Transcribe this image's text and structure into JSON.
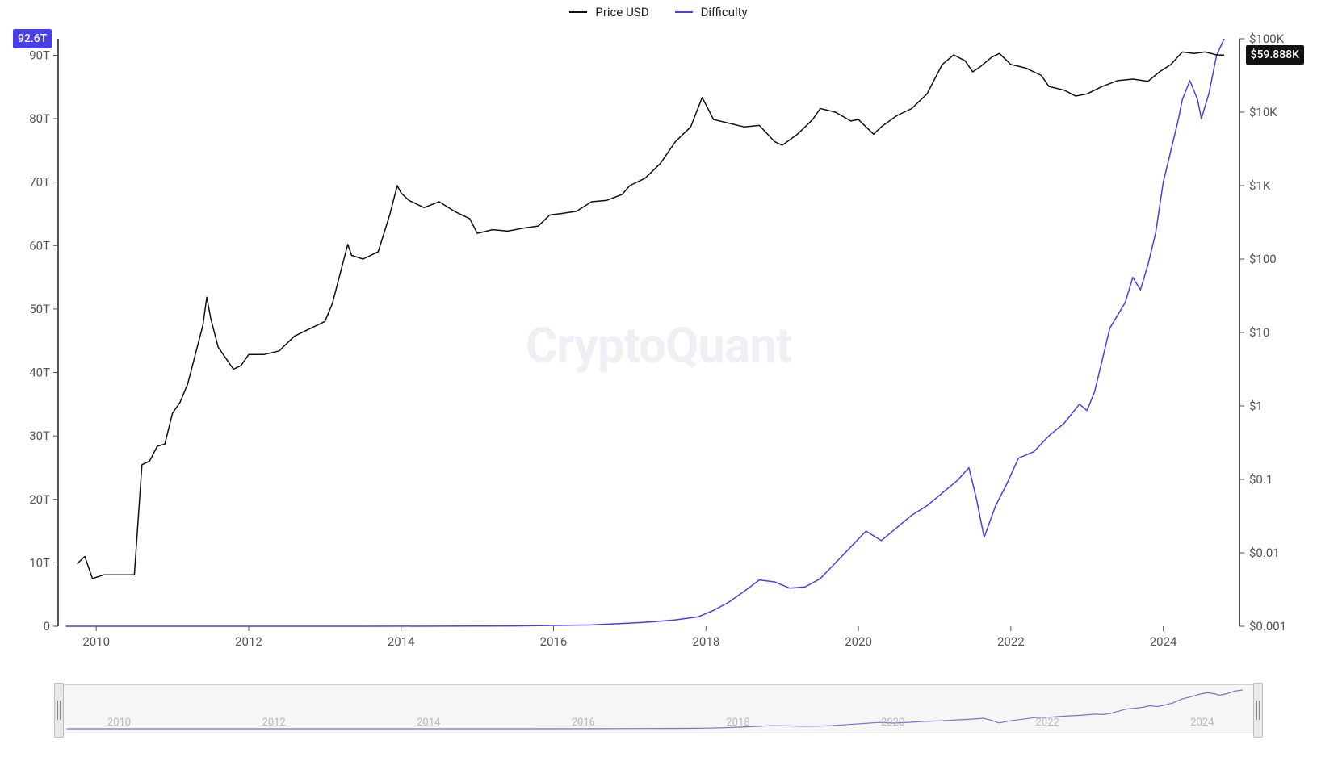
{
  "legend": {
    "items": [
      {
        "label": "Price USD",
        "color": "#111111"
      },
      {
        "label": "Difficulty",
        "color": "#4a3ee8"
      }
    ]
  },
  "watermark": "CryptoQuant",
  "left_badge": {
    "text": "92.6T",
    "bg": "#4a3ee8"
  },
  "right_badge": {
    "text": "$59.888K",
    "bg": "#111111"
  },
  "chart": {
    "type": "dual-axis-line",
    "background_color": "#ffffff",
    "axis_color": "#555555",
    "axis_width": 2,
    "line_width": 1.5,
    "font_size_ticks": 15,
    "x_axis": {
      "domain": [
        2009.5,
        2025.0
      ],
      "tick_labels": [
        "2010",
        "2012",
        "2014",
        "2016",
        "2018",
        "2020",
        "2022",
        "2024"
      ],
      "tick_values": [
        2010,
        2012,
        2014,
        2016,
        2018,
        2020,
        2022,
        2024
      ]
    },
    "left_y_axis": {
      "label_series": "Difficulty",
      "scale": "linear",
      "domain": [
        0,
        92.6
      ],
      "unit_suffix": "T",
      "tick_values": [
        0,
        10,
        20,
        30,
        40,
        50,
        60,
        70,
        80,
        90
      ],
      "tick_labels": [
        "0",
        "10T",
        "20T",
        "30T",
        "40T",
        "50T",
        "60T",
        "70T",
        "80T",
        "90T"
      ]
    },
    "right_y_axis": {
      "label_series": "Price USD",
      "scale": "log",
      "domain_log10": [
        -3,
        5
      ],
      "tick_values_log10": [
        -3,
        -2,
        -1,
        0,
        1,
        2,
        3,
        4,
        5
      ],
      "tick_labels": [
        "$0.001",
        "$0.01",
        "$0.1",
        "$1",
        "$10",
        "$100",
        "$1K",
        "$10K",
        "$100K"
      ]
    },
    "series": {
      "difficulty": {
        "color": "#4a3ee8",
        "axis": "left",
        "data": [
          [
            2009.6,
            0.0
          ],
          [
            2010.5,
            0.0
          ],
          [
            2011.5,
            0.0
          ],
          [
            2012.5,
            0.0
          ],
          [
            2013.5,
            0.0
          ],
          [
            2014.5,
            0.01
          ],
          [
            2015.5,
            0.05
          ],
          [
            2016.5,
            0.2
          ],
          [
            2017.0,
            0.5
          ],
          [
            2017.3,
            0.7
          ],
          [
            2017.6,
            1.0
          ],
          [
            2017.9,
            1.5
          ],
          [
            2018.1,
            2.5
          ],
          [
            2018.3,
            3.8
          ],
          [
            2018.5,
            5.5
          ],
          [
            2018.7,
            7.3
          ],
          [
            2018.9,
            7.0
          ],
          [
            2019.1,
            6.0
          ],
          [
            2019.3,
            6.2
          ],
          [
            2019.5,
            7.5
          ],
          [
            2019.7,
            10.0
          ],
          [
            2019.9,
            12.5
          ],
          [
            2020.1,
            15.0
          ],
          [
            2020.3,
            13.5
          ],
          [
            2020.5,
            15.5
          ],
          [
            2020.7,
            17.5
          ],
          [
            2020.9,
            19.0
          ],
          [
            2021.1,
            21.0
          ],
          [
            2021.3,
            23.0
          ],
          [
            2021.45,
            25.0
          ],
          [
            2021.55,
            20.0
          ],
          [
            2021.65,
            14.0
          ],
          [
            2021.8,
            19.0
          ],
          [
            2021.95,
            22.5
          ],
          [
            2022.1,
            26.5
          ],
          [
            2022.3,
            27.5
          ],
          [
            2022.5,
            30.0
          ],
          [
            2022.7,
            32.0
          ],
          [
            2022.9,
            35.0
          ],
          [
            2023.0,
            34.0
          ],
          [
            2023.1,
            37.0
          ],
          [
            2023.2,
            42.0
          ],
          [
            2023.3,
            47.0
          ],
          [
            2023.4,
            49.0
          ],
          [
            2023.5,
            51.0
          ],
          [
            2023.6,
            55.0
          ],
          [
            2023.7,
            53.0
          ],
          [
            2023.8,
            57.0
          ],
          [
            2023.9,
            62.0
          ],
          [
            2024.0,
            70.0
          ],
          [
            2024.1,
            75.0
          ],
          [
            2024.2,
            80.0
          ],
          [
            2024.25,
            83.0
          ],
          [
            2024.35,
            86.0
          ],
          [
            2024.45,
            83.0
          ],
          [
            2024.5,
            80.0
          ],
          [
            2024.6,
            84.0
          ],
          [
            2024.7,
            90.0
          ],
          [
            2024.8,
            92.6
          ]
        ]
      },
      "price_usd": {
        "color": "#111111",
        "axis": "right_log10",
        "data": [
          [
            2009.75,
            -2.15
          ],
          [
            2009.85,
            -2.05
          ],
          [
            2009.95,
            -2.35
          ],
          [
            2010.1,
            -2.3
          ],
          [
            2010.3,
            -2.3
          ],
          [
            2010.5,
            -2.3
          ],
          [
            2010.6,
            -0.8
          ],
          [
            2010.7,
            -0.75
          ],
          [
            2010.8,
            -0.55
          ],
          [
            2010.9,
            -0.52
          ],
          [
            2011.0,
            -0.1
          ],
          [
            2011.1,
            0.05
          ],
          [
            2011.2,
            0.3
          ],
          [
            2011.3,
            0.7
          ],
          [
            2011.4,
            1.1
          ],
          [
            2011.45,
            1.48
          ],
          [
            2011.5,
            1.2
          ],
          [
            2011.6,
            0.8
          ],
          [
            2011.7,
            0.65
          ],
          [
            2011.8,
            0.5
          ],
          [
            2011.9,
            0.55
          ],
          [
            2012.0,
            0.7
          ],
          [
            2012.2,
            0.7
          ],
          [
            2012.4,
            0.75
          ],
          [
            2012.6,
            0.95
          ],
          [
            2012.8,
            1.05
          ],
          [
            2013.0,
            1.15
          ],
          [
            2013.1,
            1.4
          ],
          [
            2013.2,
            1.8
          ],
          [
            2013.3,
            2.2
          ],
          [
            2013.35,
            2.05
          ],
          [
            2013.5,
            2.0
          ],
          [
            2013.7,
            2.1
          ],
          [
            2013.85,
            2.6
          ],
          [
            2013.95,
            3.0
          ],
          [
            2014.0,
            2.9
          ],
          [
            2014.1,
            2.8
          ],
          [
            2014.3,
            2.7
          ],
          [
            2014.5,
            2.78
          ],
          [
            2014.7,
            2.65
          ],
          [
            2014.9,
            2.55
          ],
          [
            2015.0,
            2.35
          ],
          [
            2015.2,
            2.4
          ],
          [
            2015.4,
            2.38
          ],
          [
            2015.6,
            2.42
          ],
          [
            2015.8,
            2.45
          ],
          [
            2015.95,
            2.6
          ],
          [
            2016.1,
            2.62
          ],
          [
            2016.3,
            2.65
          ],
          [
            2016.5,
            2.78
          ],
          [
            2016.7,
            2.8
          ],
          [
            2016.9,
            2.88
          ],
          [
            2017.0,
            3.0
          ],
          [
            2017.2,
            3.1
          ],
          [
            2017.4,
            3.3
          ],
          [
            2017.6,
            3.6
          ],
          [
            2017.8,
            3.8
          ],
          [
            2017.95,
            4.2
          ],
          [
            2018.0,
            4.1
          ],
          [
            2018.1,
            3.9
          ],
          [
            2018.3,
            3.85
          ],
          [
            2018.5,
            3.8
          ],
          [
            2018.7,
            3.82
          ],
          [
            2018.9,
            3.6
          ],
          [
            2019.0,
            3.55
          ],
          [
            2019.2,
            3.7
          ],
          [
            2019.4,
            3.9
          ],
          [
            2019.5,
            4.05
          ],
          [
            2019.7,
            4.0
          ],
          [
            2019.9,
            3.88
          ],
          [
            2020.0,
            3.9
          ],
          [
            2020.2,
            3.7
          ],
          [
            2020.3,
            3.8
          ],
          [
            2020.5,
            3.95
          ],
          [
            2020.7,
            4.05
          ],
          [
            2020.9,
            4.25
          ],
          [
            2021.0,
            4.45
          ],
          [
            2021.1,
            4.65
          ],
          [
            2021.25,
            4.78
          ],
          [
            2021.4,
            4.7
          ],
          [
            2021.5,
            4.55
          ],
          [
            2021.6,
            4.62
          ],
          [
            2021.75,
            4.75
          ],
          [
            2021.85,
            4.8
          ],
          [
            2022.0,
            4.65
          ],
          [
            2022.2,
            4.6
          ],
          [
            2022.4,
            4.5
          ],
          [
            2022.5,
            4.35
          ],
          [
            2022.7,
            4.3
          ],
          [
            2022.85,
            4.22
          ],
          [
            2023.0,
            4.25
          ],
          [
            2023.2,
            4.35
          ],
          [
            2023.4,
            4.43
          ],
          [
            2023.6,
            4.45
          ],
          [
            2023.8,
            4.42
          ],
          [
            2023.95,
            4.55
          ],
          [
            2024.1,
            4.65
          ],
          [
            2024.25,
            4.82
          ],
          [
            2024.4,
            4.8
          ],
          [
            2024.55,
            4.82
          ],
          [
            2024.7,
            4.78
          ],
          [
            2024.8,
            4.777
          ]
        ]
      }
    }
  },
  "overview": {
    "years": [
      "2010",
      "2012",
      "2014",
      "2016",
      "2018",
      "2020",
      "2022",
      "2024"
    ],
    "line_color": "#7b74c9",
    "bg": "#f6f6f7"
  }
}
